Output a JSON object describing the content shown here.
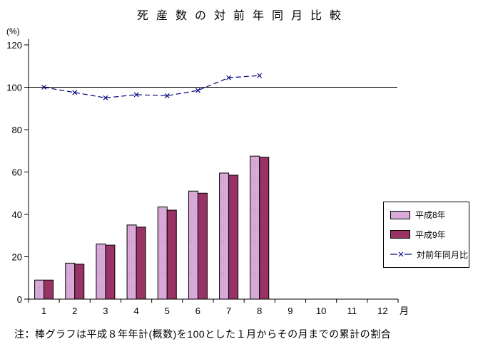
{
  "title": "死産数の対前年同月比較",
  "y_unit": "(%)",
  "x_unit": "月",
  "footnote": "注：棒グラフは平成８年年計(概数)を100とした１月からその月までの累計の割合",
  "colors": {
    "background": "#FFFFFF",
    "axis": "#000000",
    "bar_heisei8": "#D9ABD9",
    "bar_heisei8_dot": "#C791C7",
    "bar_heisei9": "#993366",
    "line": "#000080",
    "legend_border": "#000000"
  },
  "chart_data": {
    "type": "bar",
    "title": "死産数の対前年同月比較",
    "xlabel": "月",
    "ylabel": "(%)",
    "categories": [
      1,
      2,
      3,
      4,
      5,
      6,
      7,
      8,
      9,
      10,
      11,
      12
    ],
    "series": [
      {
        "name": "平成8年",
        "type": "bar",
        "values": [
          9,
          17,
          26,
          35,
          43.5,
          51,
          59.5,
          67.5
        ]
      },
      {
        "name": "平成9年",
        "type": "bar",
        "values": [
          9,
          16.5,
          25.5,
          34,
          42,
          50,
          58.5,
          67
        ]
      },
      {
        "name": "対前年同月比",
        "type": "line",
        "values": [
          100,
          97.5,
          95,
          96.5,
          96,
          98.5,
          104.5,
          105.5
        ]
      }
    ],
    "ylim": [
      0,
      120
    ],
    "yticks": [
      0,
      20,
      40,
      60,
      80,
      100,
      120
    ],
    "reference_line": 100,
    "grid": false,
    "legend_position": "right-middle"
  }
}
